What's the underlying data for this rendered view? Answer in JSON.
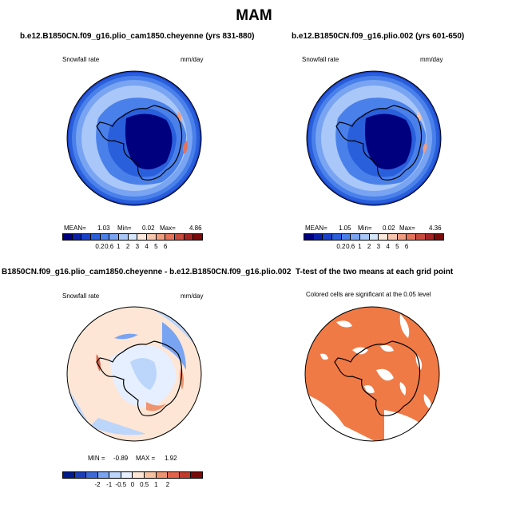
{
  "figure_title": "MAM",
  "panels": [
    {
      "title": "b.e12.B1850CN.f09_g16.plio_cam1850.cheyenne (yrs 831-880)",
      "variable": "Snowfall rate",
      "units": "mm/day",
      "stats": {
        "mean_label": "MEAN=",
        "mean": "1.03",
        "min_label": "Min=",
        "min": "0.02",
        "max_label": "Max=",
        "max": "4.86"
      },
      "colorbar_ticks": [
        "0.2",
        "0.6",
        "1",
        "2",
        "3",
        "4",
        "5",
        "6"
      ]
    },
    {
      "title": "b.e12.B1850CN.f09_g16.plio.002 (yrs 601-650)",
      "variable": "Snowfall rate",
      "units": "mm/day",
      "stats": {
        "mean_label": "MEAN=",
        "mean": "1.05",
        "min_label": "Min=",
        "min": "0.02",
        "max_label": "Max=",
        "max": "4.36"
      },
      "colorbar_ticks": [
        "0.2",
        "0.6",
        "1",
        "2",
        "3",
        "4",
        "5",
        "6"
      ]
    },
    {
      "title": "B1850CN.f09_g16.plio_cam1850.cheyenne - b.e12.B1850CN.f09_g16.plio.002",
      "variable": "Snowfall rate",
      "units": "mm/day",
      "stats": {
        "min_label": "MIN =",
        "min": "-0.89",
        "max_label": "MAX =",
        "max": "1.92"
      },
      "colorbar_ticks": [
        "-2",
        "-1",
        "-0.5",
        "0",
        "0.5",
        "1",
        "2"
      ]
    },
    {
      "title": "T-test of the two means at each grid point",
      "subtitle": "Colored cells are significant at the 0.05 level"
    }
  ],
  "colors": {
    "abs_scale": [
      "#00007f",
      "#0a1fa8",
      "#1840c8",
      "#2a5fdc",
      "#4a80ea",
      "#79a4f2",
      "#a9c7f8",
      "#d6e6fc",
      "#fde8dc",
      "#f8c6ae",
      "#f19e80",
      "#e4735a",
      "#c84a3c",
      "#a32222",
      "#7a0a0a"
    ],
    "diff_scale": [
      "#001a8c",
      "#1b3fb8",
      "#3c6bd9",
      "#79a4f2",
      "#bcd5fa",
      "#e6efff",
      "#fde6d6",
      "#f7c2a2",
      "#ef9470",
      "#e0634a",
      "#c23a2c",
      "#7a0a0a"
    ],
    "significant": "#f07a45",
    "coast": "#000000"
  }
}
